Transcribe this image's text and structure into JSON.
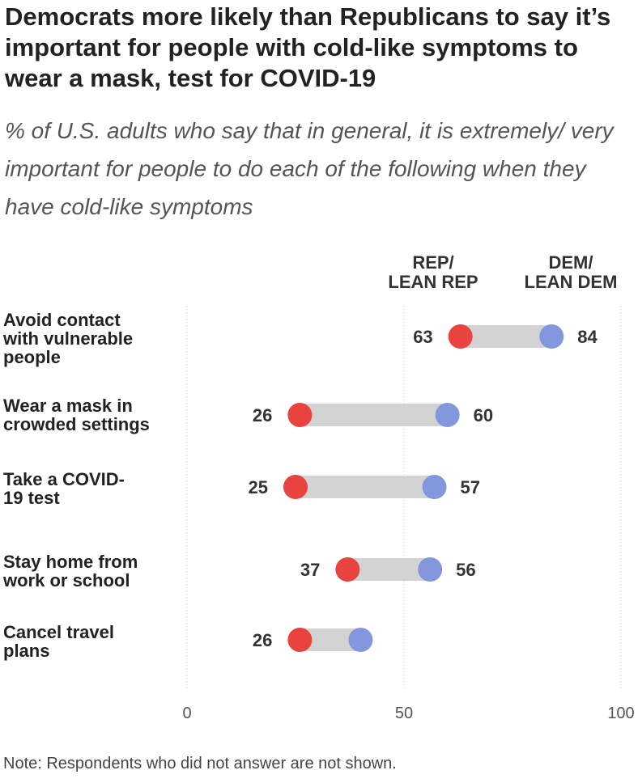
{
  "title": "Democrats more likely than Republicans to say it’s important for people with cold-like symptoms to wear a mask, test for COVID-19",
  "subtitle": "% of U.S. adults who say that in general, it is extremely/ very important for people to do each of the following when they have cold-like symptoms",
  "note": "Note: Respondents who did not answer are not shown.",
  "chart_data": {
    "type": "dot",
    "xlim": [
      0,
      100
    ],
    "ticks": [
      0,
      50,
      100
    ],
    "grid": true,
    "legend_placement": "top-right",
    "series": [
      {
        "name": "REP/ LEAN REP",
        "color": "#e8433f"
      },
      {
        "name": "DEM/ LEAN DEM",
        "color": "#8397de"
      }
    ],
    "categories": [
      "Avoid contact with vulnerable people",
      "Wear a mask in crowded settings",
      "Take a COVID-19 test",
      "Stay home from work or school",
      "Cancel travel plans"
    ],
    "rows": [
      {
        "rep": 63,
        "dem": 84,
        "rep_label": "63",
        "dem_label": "84"
      },
      {
        "rep": 26,
        "dem": 60,
        "rep_label": "26",
        "dem_label": "60"
      },
      {
        "rep": 25,
        "dem": 57,
        "rep_label": "25",
        "dem_label": "57"
      },
      {
        "rep": 37,
        "dem": 56,
        "rep_label": "37",
        "dem_label": "56"
      },
      {
        "rep": 26,
        "dem": 40,
        "rep_label": "26",
        "dem_label": ""
      }
    ],
    "bar_color": "#d3d3d3"
  }
}
